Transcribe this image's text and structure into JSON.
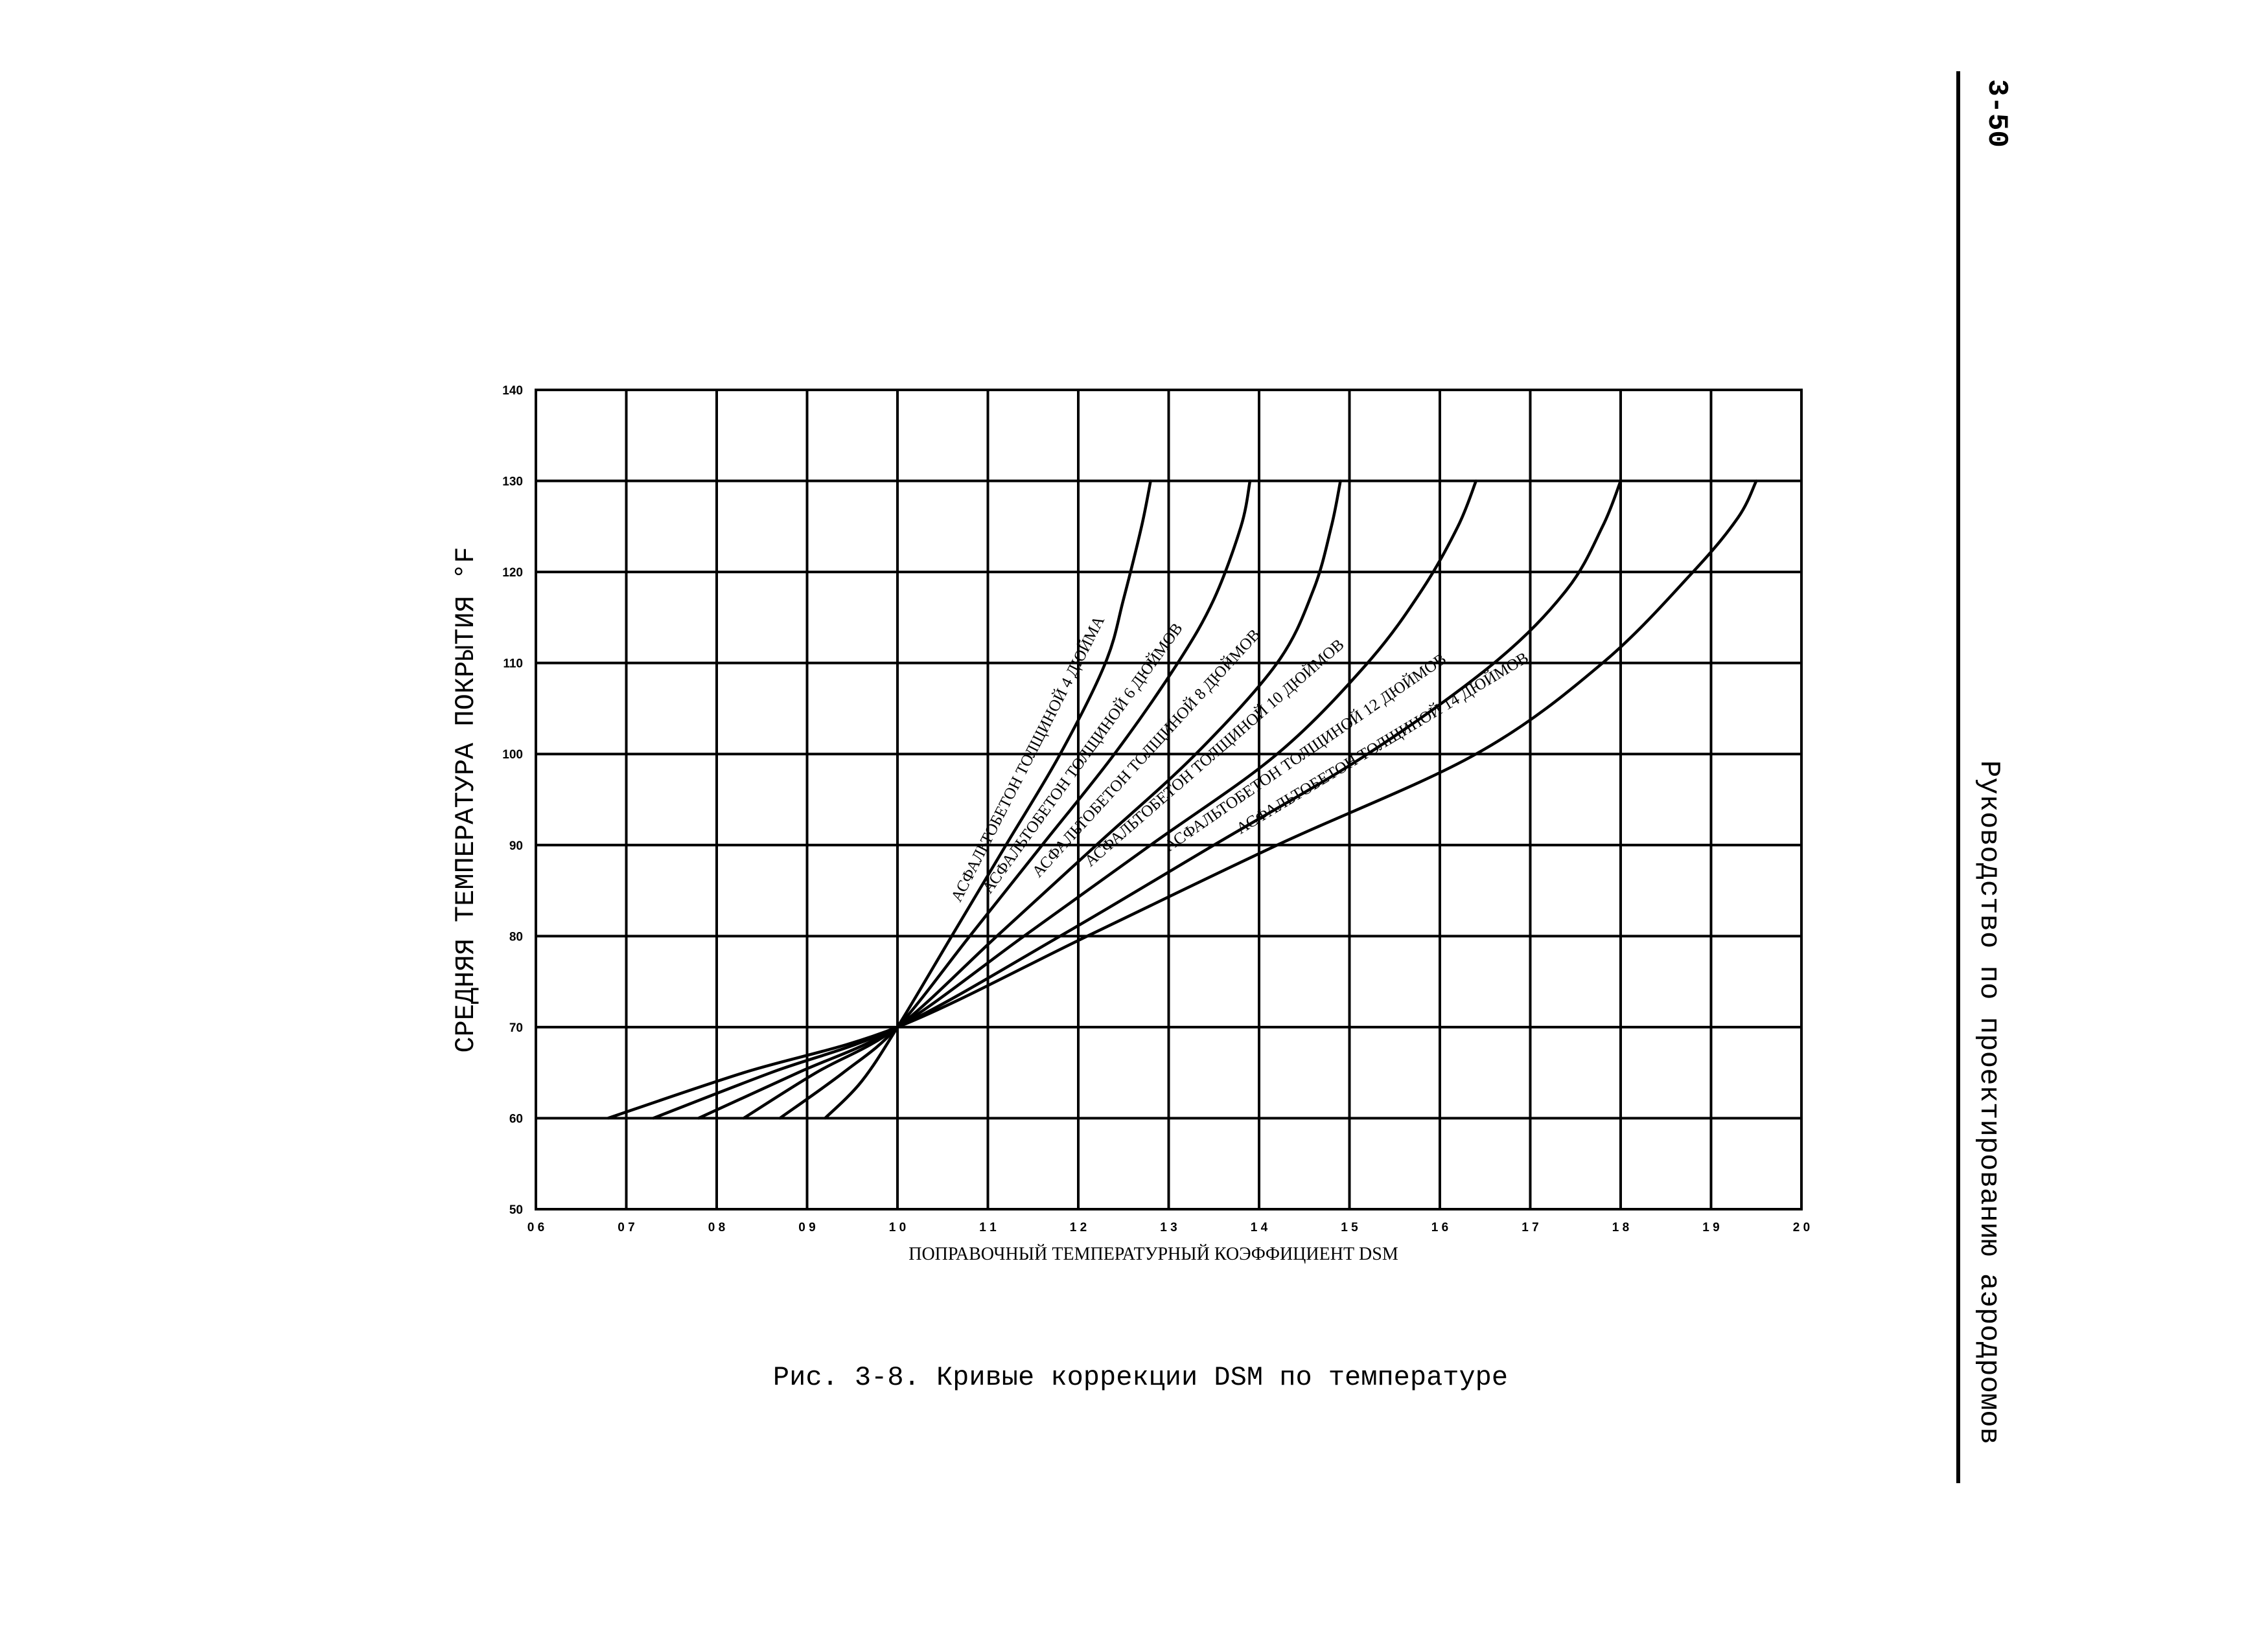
{
  "page": {
    "number": "3-50",
    "header": "Руководство по проектированию аэродромов",
    "caption": "Рис. 3-8.  Кривые коррекции DSM по температуре"
  },
  "chart_data": {
    "type": "line",
    "xlabel": "ПОПРАВОЧНЫЙ ТЕМПЕРАТУРНЫЙ КОЭФФИЦИЕНТ DSM",
    "ylabel": "СРЕДНЯЯ ТЕМПЕРАТУРА ПОКРЫТИЯ  °F",
    "xlim": [
      0.6,
      2.0
    ],
    "ylim": [
      50,
      140
    ],
    "x_ticks": [
      0.6,
      0.7,
      0.8,
      0.9,
      1.0,
      1.1,
      1.2,
      1.3,
      1.4,
      1.5,
      1.6,
      1.7,
      1.8,
      1.9,
      2.0
    ],
    "x_tick_labels": [
      "0 6",
      "0 7",
      "0 8",
      "0 9",
      "1 0",
      "1 1",
      "1 2",
      "1 3",
      "1 4",
      "1 5",
      "1 6",
      "1 7",
      "1 8",
      "1 9",
      "2 0"
    ],
    "y_ticks": [
      50,
      60,
      70,
      80,
      90,
      100,
      110,
      120,
      130,
      140
    ],
    "y_tick_labels": [
      "50",
      "60",
      "70",
      "80",
      "90",
      "100",
      "110",
      "120",
      "130",
      "140"
    ],
    "grid": true,
    "series": [
      {
        "name": "АСФАЛЬТОБЕТОН ТОЛЩИНОЙ 4 ДЮЙМА",
        "x": [
          0.92,
          0.96,
          1.0,
          1.06,
          1.12,
          1.18,
          1.23,
          1.25,
          1.27,
          1.28
        ],
        "y": [
          60,
          64,
          70,
          80,
          90,
          100,
          110,
          117,
          125,
          130
        ]
      },
      {
        "name": "АСФАЛЬТОБЕТОН ТОЛЩИНОЙ 6 ДЮЙМОВ",
        "x": [
          0.87,
          0.94,
          1.0,
          1.08,
          1.16,
          1.24,
          1.31,
          1.35,
          1.38,
          1.39
        ],
        "y": [
          60,
          65,
          70,
          80,
          90,
          100,
          110,
          117,
          125,
          130
        ]
      },
      {
        "name": "АСФАЛЬТОБЕТОН ТОЛЩИНОЙ 8 ДЮЙМОВ",
        "x": [
          0.83,
          0.91,
          1.0,
          1.11,
          1.22,
          1.33,
          1.42,
          1.46,
          1.48,
          1.49
        ],
        "y": [
          60,
          65,
          70,
          80,
          90,
          100,
          110,
          118,
          125,
          130
        ]
      },
      {
        "name": "АСФАЛЬТОБЕТОН ТОЛЩИНОЙ 10 ДЮЙМОВ",
        "x": [
          0.78,
          0.89,
          1.0,
          1.14,
          1.28,
          1.42,
          1.52,
          1.58,
          1.62,
          1.64
        ],
        "y": [
          60,
          65,
          70,
          80,
          90,
          100,
          110,
          118,
          125,
          130
        ]
      },
      {
        "name": "АСФАЛЬТОБЕТОН ТОЛЩИНОЙ 12 ДЮЙМОВ",
        "x": [
          0.73,
          0.86,
          1.0,
          1.18,
          1.35,
          1.52,
          1.66,
          1.74,
          1.78,
          1.8
        ],
        "y": [
          60,
          65,
          70,
          80,
          90,
          100,
          110,
          118,
          125,
          130
        ]
      },
      {
        "name": "АСФАЛЬТОБЕТОН ТОЛЩИНОЙ 14 ДЮЙМОВ",
        "x": [
          0.68,
          0.83,
          1.0,
          1.21,
          1.42,
          1.64,
          1.78,
          1.88,
          1.93,
          1.95
        ],
        "y": [
          60,
          65,
          70,
          80,
          90,
          100,
          110,
          120,
          126,
          130
        ]
      }
    ]
  }
}
